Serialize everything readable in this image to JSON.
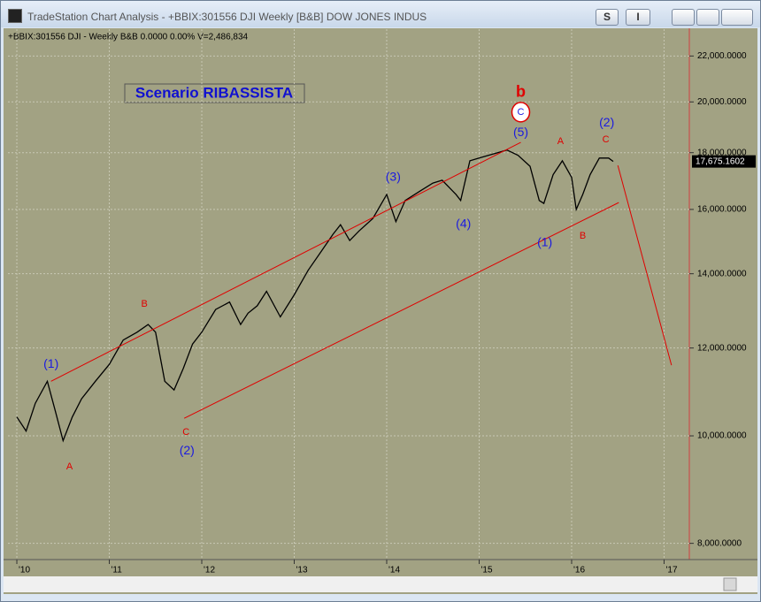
{
  "window": {
    "title": "TradeStation Chart Analysis - +BBIX:301556 DJI Weekly [B&B] DOW JONES INDUS",
    "buttons": [
      "S",
      "I"
    ]
  },
  "chart_data": {
    "type": "line",
    "subtitle": "+BBIX:301556 DJI - Weekly   B&B   0.0000   0.00%   V=2,486,834",
    "scenario_label": "Scenario RIBASSISTA",
    "color": "#000000",
    "log_scale": true,
    "grid": true,
    "x": [
      2010.0,
      2010.1,
      2010.2,
      2010.33,
      2010.42,
      2010.5,
      2010.6,
      2010.7,
      2010.85,
      2011.0,
      2011.15,
      2011.3,
      2011.42,
      2011.5,
      2011.6,
      2011.7,
      2011.8,
      2011.9,
      2012.0,
      2012.15,
      2012.3,
      2012.42,
      2012.5,
      2012.6,
      2012.7,
      2012.85,
      2013.0,
      2013.15,
      2013.3,
      2013.42,
      2013.5,
      2013.6,
      2013.7,
      2013.85,
      2014.0,
      2014.1,
      2014.2,
      2014.35,
      2014.5,
      2014.6,
      2014.75,
      2014.8,
      2014.9,
      2015.0,
      2015.1,
      2015.2,
      2015.3,
      2015.42,
      2015.55,
      2015.65,
      2015.7,
      2015.8,
      2015.9,
      2016.0,
      2016.05,
      2016.12,
      2016.2,
      2016.3,
      2016.4,
      2016.45
    ],
    "values": [
      10400,
      10100,
      10700,
      11200,
      10500,
      9900,
      10400,
      10800,
      11200,
      11600,
      12200,
      12400,
      12600,
      12400,
      11200,
      11000,
      11500,
      12100,
      12400,
      13000,
      13200,
      12600,
      12900,
      13100,
      13500,
      12800,
      13400,
      14100,
      14700,
      15200,
      15500,
      15000,
      15300,
      15700,
      16500,
      15600,
      16300,
      16600,
      16900,
      17000,
      16500,
      16300,
      17700,
      17800,
      17900,
      18000,
      18100,
      17900,
      17500,
      16300,
      16200,
      17200,
      17700,
      17100,
      16000,
      16500,
      17200,
      17800,
      17800,
      17675.1602
    ],
    "last_price": {
      "value": 17675.1602,
      "label": "17,675.1602"
    },
    "xlim": [
      2009.904,
      2017.273
    ],
    "ylim": [
      7735,
      23260
    ],
    "xticks": [
      {
        "value": 2010,
        "label": "'10"
      },
      {
        "value": 2011,
        "label": "'11"
      },
      {
        "value": 2012,
        "label": "'12"
      },
      {
        "value": 2013,
        "label": "'13"
      },
      {
        "value": 2014,
        "label": "'14"
      },
      {
        "value": 2015,
        "label": "'15"
      },
      {
        "value": 2016,
        "label": "'16"
      },
      {
        "value": 2017,
        "label": "'17"
      }
    ],
    "yticks": [
      {
        "value": 8000,
        "label": "8,000.0000"
      },
      {
        "value": 10000,
        "label": "10,000.0000"
      },
      {
        "value": 12000,
        "label": "12,000.0000"
      },
      {
        "value": 14000,
        "label": "14,000.0000"
      },
      {
        "value": 16000,
        "label": "16,000.0000"
      },
      {
        "value": 18000,
        "label": "18,000.0000"
      },
      {
        "value": 20000,
        "label": "20,000.0000"
      },
      {
        "value": 22000,
        "label": "22,000.0000"
      }
    ],
    "lines": [
      {
        "color": "#e00000",
        "x": [
          2010.37,
          2015.45
        ],
        "y": [
          11200,
          18390
        ]
      },
      {
        "color": "#e00000",
        "x": [
          2011.81,
          2016.51
        ],
        "y": [
          10370,
          16230
        ]
      },
      {
        "color": "#e00000",
        "x": [
          2016.5,
          2017.08
        ],
        "y": [
          17530,
          11580
        ]
      }
    ],
    "annotations": [
      {
        "text": "(1)",
        "x": 2010.37,
        "y": 11600,
        "color": "#1a1ae0"
      },
      {
        "text": "A",
        "x": 2010.57,
        "y": 9380,
        "color": "#e00000"
      },
      {
        "text": "B",
        "x": 2011.38,
        "y": 13140,
        "color": "#e00000"
      },
      {
        "text": "C",
        "x": 2011.83,
        "y": 10070,
        "color": "#e00000"
      },
      {
        "text": "(2)",
        "x": 2011.84,
        "y": 9690,
        "color": "#1a1ae0"
      },
      {
        "text": "(3)",
        "x": 2014.07,
        "y": 17090,
        "color": "#1a1ae0"
      },
      {
        "text": "(4)",
        "x": 2014.83,
        "y": 15510,
        "color": "#1a1ae0"
      },
      {
        "text": "(5)",
        "x": 2015.45,
        "y": 18760,
        "color": "#1a1ae0"
      },
      {
        "text": "C",
        "x": 2015.45,
        "y": 19580,
        "color": "#1a1ae0",
        "circle": true
      },
      {
        "text": "b",
        "x": 2015.45,
        "y": 20400,
        "color": "#e00000",
        "bold": true
      },
      {
        "text": "A",
        "x": 2015.88,
        "y": 18430,
        "color": "#e00000"
      },
      {
        "text": "(1)",
        "x": 2015.71,
        "y": 14920,
        "color": "#1a1ae0"
      },
      {
        "text": "B",
        "x": 2016.12,
        "y": 15140,
        "color": "#e00000"
      },
      {
        "text": "C",
        "x": 2016.37,
        "y": 18490,
        "color": "#e00000"
      },
      {
        "text": "(2)",
        "x": 2016.38,
        "y": 19140,
        "color": "#1a1ae0"
      }
    ]
  }
}
